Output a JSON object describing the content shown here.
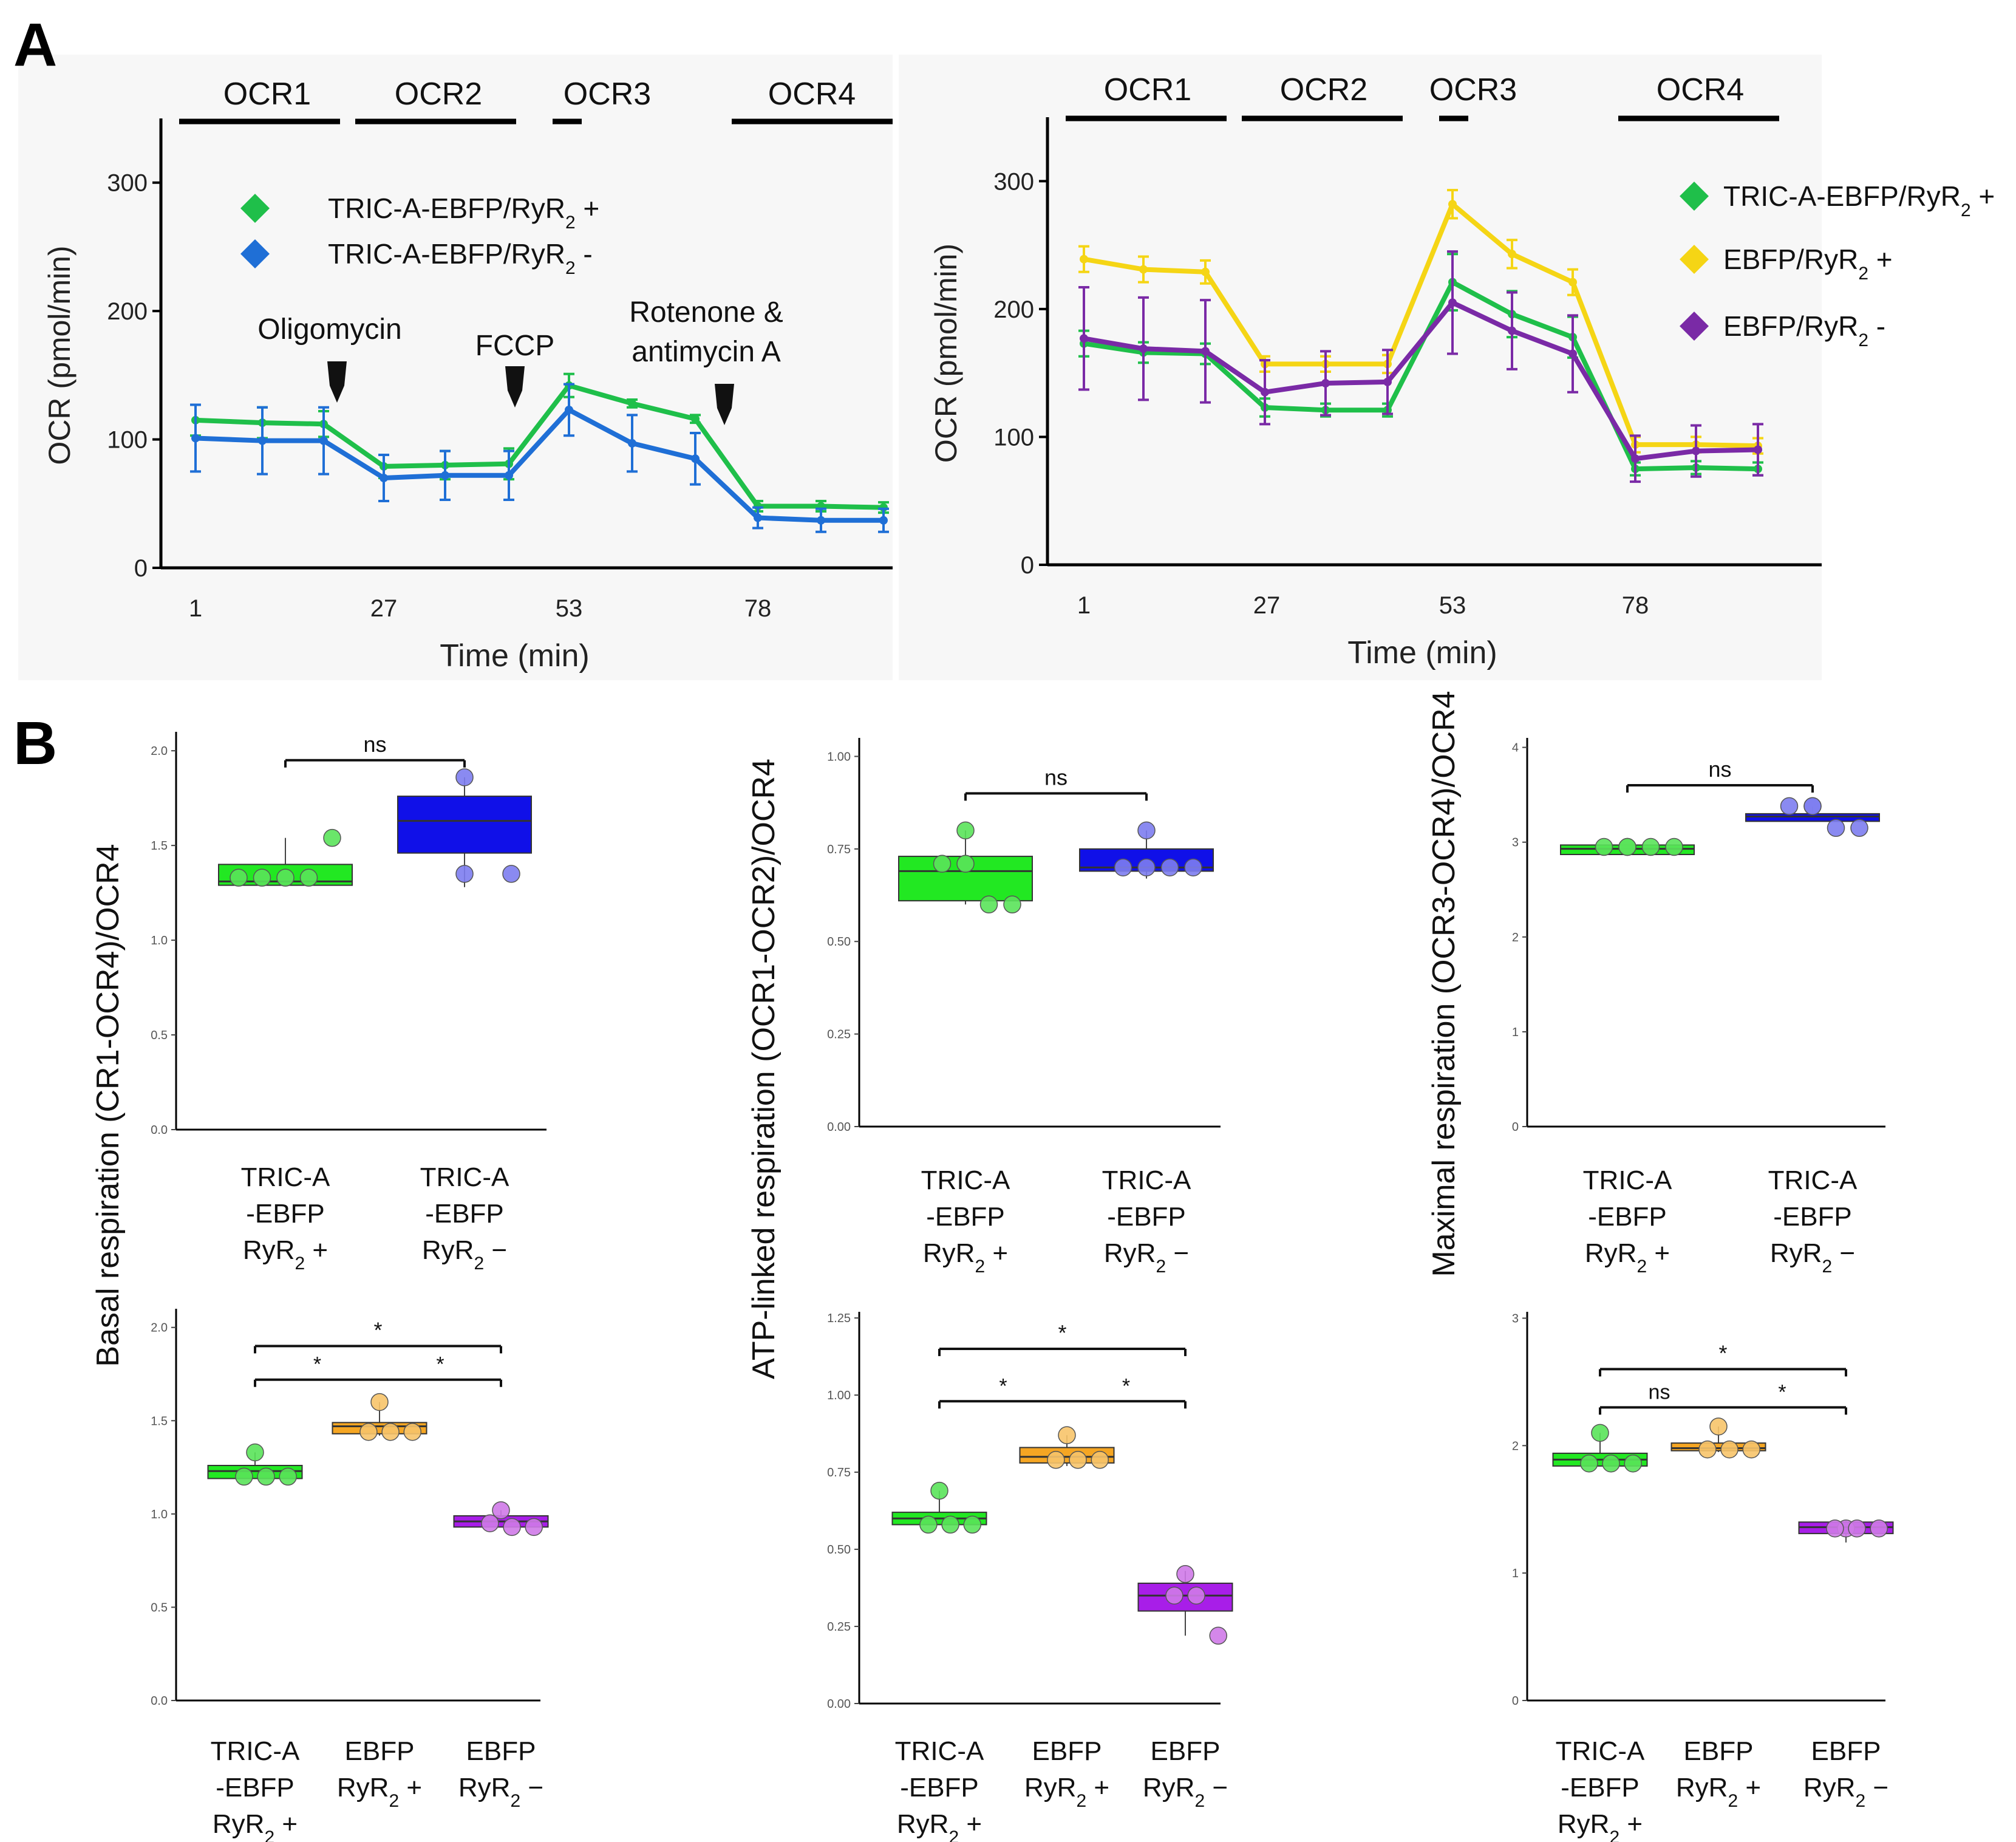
{
  "panel_labels": [
    "A",
    "B"
  ],
  "colors": {
    "green": "#1fbf4a",
    "blue": "#1f6fd6",
    "yellow": "#f5d515",
    "purple": "#7a2aa6",
    "box_green": "#22e822",
    "box_blue": "#1010e8",
    "box_orange": "#f5a623",
    "box_purple": "#a81ee8",
    "dot_green": "#5ae35a",
    "dot_blue": "#7d7df0",
    "dot_orange": "#f7c46a",
    "dot_purple": "#cf7ae8"
  },
  "chart_data": [
    {
      "id": "A-left",
      "type": "line",
      "ylabel": "OCR (pmol/min)",
      "xlabel": "Time (min)",
      "ylim": [
        0,
        350
      ],
      "yticks": [
        "0",
        "100",
        "200",
        "300"
      ],
      "xtick_labels": [
        "1",
        "27",
        "53",
        "78"
      ],
      "phases": [
        "OCR1",
        "OCR2",
        "OCR3",
        "OCR4"
      ],
      "injections": [
        "Oligomycin",
        "FCCP",
        "Rotenone &",
        "antimycin A"
      ],
      "legend": [
        "TRIC-A-EBFP/RyR",
        "TRIC-A-EBFP/RyR"
      ],
      "legend_suffix": [
        "2",
        "+",
        "2",
        "-"
      ],
      "series": [
        {
          "name": "TRIC-A-EBFP/RyR2 +",
          "color": "green",
          "values": [
            115,
            113,
            112,
            79,
            80,
            81,
            142,
            128,
            116,
            48,
            48,
            47
          ],
          "err": [
            12,
            12,
            10,
            9,
            11,
            12,
            9,
            3,
            3,
            4,
            4,
            4
          ]
        },
        {
          "name": "TRIC-A-EBFP/RyR2 -",
          "color": "blue",
          "values": [
            101,
            99,
            99,
            70,
            72,
            72,
            123,
            97,
            85,
            39,
            37,
            37
          ],
          "err": [
            26,
            26,
            26,
            18,
            19,
            19,
            20,
            22,
            20,
            8,
            9,
            9
          ]
        }
      ]
    },
    {
      "id": "A-right",
      "type": "line",
      "ylabel": "OCR (pmol/min)",
      "xlabel": "Time (min)",
      "ylim": [
        0,
        350
      ],
      "yticks": [
        "0",
        "100",
        "200",
        "300"
      ],
      "xtick_labels": [
        "1",
        "27",
        "53",
        "78"
      ],
      "phases": [
        "OCR1",
        "OCR2",
        "OCR3",
        "OCR4"
      ],
      "legend": [
        "TRIC-A-EBFP/RyR",
        "EBFP/RyR",
        "EBFP/RyR"
      ],
      "legend_suffix": [
        "2",
        "+",
        "2",
        "+",
        "2",
        "-"
      ],
      "series": [
        {
          "name": "TRIC-A-EBFP/RyR2 +",
          "color": "green",
          "values": [
            173,
            166,
            165,
            123,
            121,
            121,
            221,
            196,
            178,
            75,
            76,
            75
          ],
          "err": [
            10,
            8,
            8,
            7,
            5,
            5,
            22,
            18,
            16,
            5,
            5,
            5
          ]
        },
        {
          "name": "EBFP/RyR2 +",
          "color": "yellow",
          "values": [
            239,
            231,
            229,
            157,
            157,
            157,
            282,
            243,
            221,
            94,
            94,
            93
          ],
          "err": [
            10,
            10,
            9,
            6,
            6,
            7,
            11,
            11,
            10,
            6,
            6,
            6
          ]
        },
        {
          "name": "EBFP/RyR2 -",
          "color": "purple",
          "values": [
            177,
            169,
            167,
            135,
            142,
            143,
            205,
            183,
            165,
            83,
            89,
            90
          ],
          "err": [
            40,
            40,
            40,
            25,
            25,
            25,
            40,
            30,
            30,
            18,
            20,
            20
          ]
        }
      ]
    },
    {
      "id": "B-basal-top",
      "type": "box",
      "ylim": [
        0,
        2.1
      ],
      "yticks": [
        "0.0",
        "0.5",
        "1.0",
        "1.5",
        "2.0"
      ],
      "yvals": [
        0,
        0.5,
        1,
        1.5,
        2
      ],
      "groups": [
        {
          "box": [
            1.29,
            1.31,
            1.4
          ],
          "whisk": [
            1.29,
            1.54
          ],
          "pts": [
            1.33,
            1.33,
            1.33,
            1.33,
            1.54
          ],
          "box_color": "box_green",
          "dot_color": "dot_green",
          "label": [
            "TRIC-A",
            "-EBFP",
            "RyR",
            "2",
            "+"
          ]
        },
        {
          "box": [
            1.46,
            1.63,
            1.76
          ],
          "whisk": [
            1.28,
            1.86
          ],
          "pts": [
            1.86,
            1.35,
            1.35
          ],
          "box_color": "box_blue",
          "dot_color": "dot_blue",
          "label": [
            "TRIC-A",
            "-EBFP",
            "RyR",
            "2",
            "−"
          ]
        }
      ],
      "sig": [
        {
          "a": 0,
          "b": 1,
          "y": 1.95,
          "text": "ns"
        }
      ]
    },
    {
      "id": "B-atp-top",
      "type": "box",
      "ylim": [
        0,
        1.05
      ],
      "yticks": [
        "0.00",
        "0.25",
        "0.50",
        "0.75",
        "1.00"
      ],
      "yvals": [
        0,
        0.25,
        0.5,
        0.75,
        1
      ],
      "groups": [
        {
          "box": [
            0.61,
            0.69,
            0.73
          ],
          "whisk": [
            0.6,
            0.8
          ],
          "pts": [
            0.8,
            0.71,
            0.71,
            0.6,
            0.6
          ],
          "box_color": "box_green",
          "dot_color": "dot_green",
          "label": [
            "TRIC-A",
            "-EBFP",
            "RyR",
            "2",
            "+"
          ]
        },
        {
          "box": [
            0.69,
            0.7,
            0.75
          ],
          "whisk": [
            0.67,
            0.8
          ],
          "pts": [
            0.8,
            0.7,
            0.7,
            0.7,
            0.7
          ],
          "box_color": "box_blue",
          "dot_color": "dot_blue",
          "label": [
            "TRIC-A",
            "-EBFP",
            "RyR",
            "2",
            "−"
          ]
        }
      ],
      "sig": [
        {
          "a": 0,
          "b": 1,
          "y": 0.9,
          "text": "ns"
        }
      ]
    },
    {
      "id": "B-max-top",
      "type": "box",
      "ylim": [
        0,
        4.1
      ],
      "yticks": [
        "0",
        "1",
        "2",
        "3",
        "4"
      ],
      "yvals": [
        0,
        1,
        2,
        3,
        4
      ],
      "groups": [
        {
          "box": [
            2.87,
            2.93,
            2.97
          ],
          "whisk": [
            2.87,
            2.97
          ],
          "pts": [
            2.95,
            2.95,
            2.95,
            2.95,
            2.95
          ],
          "box_color": "box_green",
          "dot_color": "dot_green",
          "label": [
            "TRIC-A",
            "-EBFP",
            "RyR",
            "2",
            "+"
          ]
        },
        {
          "box": [
            3.22,
            3.27,
            3.3
          ],
          "whisk": [
            3.22,
            3.38
          ],
          "pts": [
            3.38,
            3.38,
            3.38,
            3.15,
            3.15
          ],
          "box_color": "box_blue",
          "dot_color": "dot_blue",
          "label": [
            "TRIC-A",
            "-EBFP",
            "RyR",
            "2",
            "−"
          ]
        }
      ],
      "sig": [
        {
          "a": 0,
          "b": 1,
          "y": 3.6,
          "text": "ns"
        }
      ]
    },
    {
      "id": "B-basal-bottom",
      "type": "box",
      "ylim": [
        0,
        2.1
      ],
      "ylabel": "Basal respiration  (CR1-OCR4)/OCR4",
      "yticks": [
        "0.0",
        "0.5",
        "1.0",
        "1.5",
        "2.0"
      ],
      "yvals": [
        0,
        0.5,
        1,
        1.5,
        2
      ],
      "groups": [
        {
          "box": [
            1.19,
            1.23,
            1.26
          ],
          "whisk": [
            1.19,
            1.33
          ],
          "pts": [
            1.33,
            1.2,
            1.2,
            1.2
          ],
          "box_color": "box_green",
          "dot_color": "dot_green",
          "label": [
            "TRIC-A",
            "-EBFP",
            "RyR",
            "2",
            "+"
          ]
        },
        {
          "box": [
            1.43,
            1.47,
            1.49
          ],
          "whisk": [
            1.42,
            1.6
          ],
          "pts": [
            1.6,
            1.44,
            1.44,
            1.44
          ],
          "box_color": "box_orange",
          "dot_color": "dot_orange",
          "label": [
            "EBFP",
            "",
            "RyR",
            "2",
            "+"
          ]
        },
        {
          "box": [
            0.93,
            0.96,
            0.99
          ],
          "whisk": [
            0.93,
            1.02
          ],
          "pts": [
            1.02,
            0.95,
            0.93,
            0.93
          ],
          "box_color": "box_purple",
          "dot_color": "dot_purple",
          "label": [
            "EBFP",
            "",
            "RyR",
            "2",
            "−"
          ]
        }
      ],
      "sig": [
        {
          "a": 0,
          "b": 2,
          "y": 1.9,
          "text": "*"
        },
        {
          "a": 0,
          "b": 2,
          "y": 1.72,
          "text": "*   *",
          "double": true
        }
      ]
    },
    {
      "id": "B-atp-bottom",
      "type": "box",
      "ylim": [
        0,
        1.27
      ],
      "ylabel": "ATP-linked respiration (OCR1-OCR2)/OCR4",
      "yticks": [
        "0.00",
        "0.25",
        "0.50",
        "0.75",
        "1.00",
        "1.25"
      ],
      "yvals": [
        0,
        0.25,
        0.5,
        0.75,
        1,
        1.25
      ],
      "groups": [
        {
          "box": [
            0.58,
            0.6,
            0.62
          ],
          "whisk": [
            0.58,
            0.69
          ],
          "pts": [
            0.69,
            0.58,
            0.58,
            0.58
          ],
          "box_color": "box_green",
          "dot_color": "dot_green",
          "label": [
            "TRIC-A",
            "-EBFP",
            "RyR",
            "2",
            "+"
          ]
        },
        {
          "box": [
            0.78,
            0.8,
            0.83
          ],
          "whisk": [
            0.77,
            0.87
          ],
          "pts": [
            0.87,
            0.79,
            0.79,
            0.79
          ],
          "box_color": "box_orange",
          "dot_color": "dot_orange",
          "label": [
            "EBFP",
            "",
            "RyR",
            "2",
            "+"
          ]
        },
        {
          "box": [
            0.3,
            0.35,
            0.39
          ],
          "whisk": [
            0.22,
            0.43
          ],
          "pts": [
            0.42,
            0.35,
            0.35,
            0.22
          ],
          "box_color": "box_purple",
          "dot_color": "dot_purple",
          "label": [
            "EBFP",
            "",
            "RyR",
            "2",
            "−"
          ]
        }
      ],
      "sig": [
        {
          "a": 0,
          "b": 2,
          "y": 1.15,
          "text": "*"
        },
        {
          "a": 0,
          "b": 2,
          "y": 0.98,
          "text": "*   *",
          "double": true
        }
      ]
    },
    {
      "id": "B-max-bottom",
      "type": "box",
      "ylim": [
        0,
        3.05
      ],
      "ylabel": "Maximal respiration (OCR3-OCR4)/OCR4",
      "yticks": [
        "0",
        "1",
        "2",
        "3"
      ],
      "yvals": [
        0,
        1,
        2,
        3
      ],
      "groups": [
        {
          "box": [
            1.84,
            1.89,
            1.94
          ],
          "whisk": [
            1.84,
            2.1
          ],
          "pts": [
            2.1,
            1.86,
            1.86,
            1.86
          ],
          "box_color": "box_green",
          "dot_color": "dot_green",
          "label": [
            "TRIC-A",
            "-EBFP",
            "RyR",
            "2",
            "+"
          ]
        },
        {
          "box": [
            1.96,
            1.98,
            2.02
          ],
          "whisk": [
            1.95,
            2.15
          ],
          "pts": [
            2.15,
            1.97,
            1.97,
            1.97
          ],
          "box_color": "box_orange",
          "dot_color": "dot_orange",
          "label": [
            "EBFP",
            "",
            "RyR",
            "2",
            "+"
          ]
        },
        {
          "box": [
            1.31,
            1.36,
            1.4
          ],
          "whisk": [
            1.24,
            1.41
          ],
          "pts": [
            1.35,
            1.35,
            1.35,
            1.35
          ],
          "box_color": "box_purple",
          "dot_color": "dot_purple",
          "label": [
            "EBFP",
            "",
            "RyR",
            "2",
            "−"
          ]
        }
      ],
      "sig": [
        {
          "a": 0,
          "b": 2,
          "y": 2.6,
          "text": "*"
        },
        {
          "a": 0,
          "b": 2,
          "y": 2.3,
          "text": "ns    *",
          "double": true
        }
      ]
    }
  ]
}
